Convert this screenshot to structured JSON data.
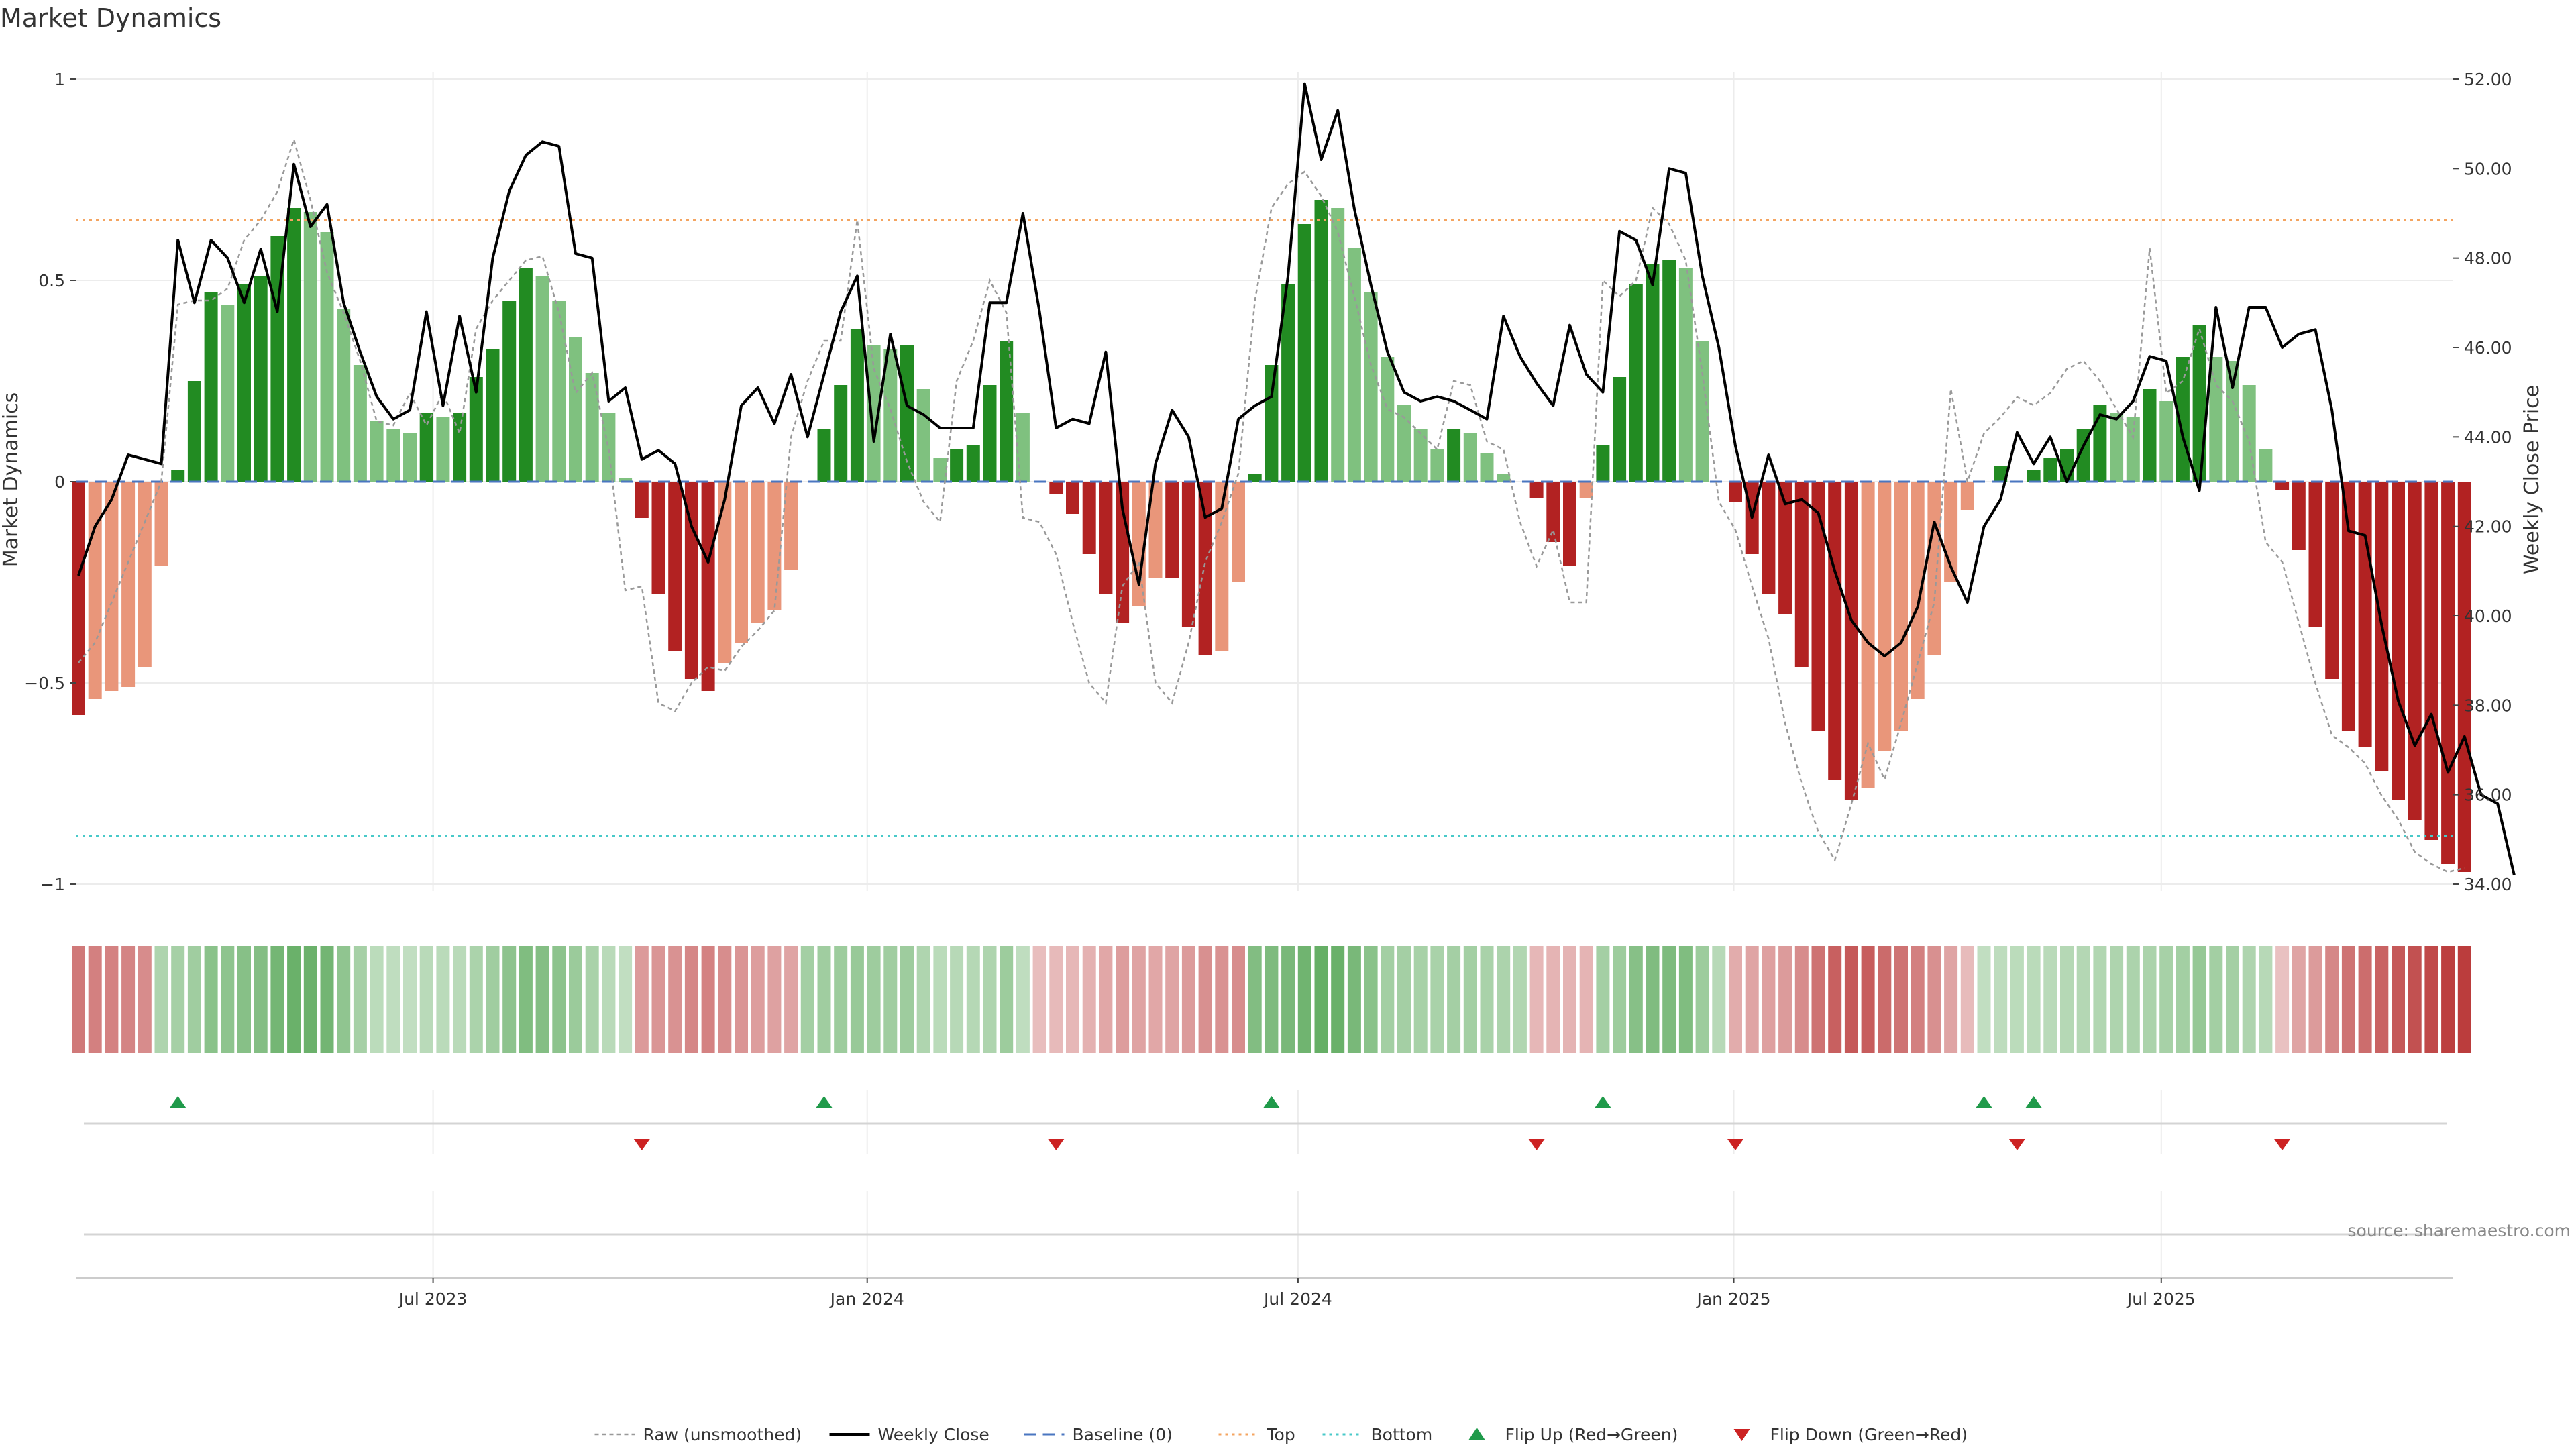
{
  "chart_data": {
    "type": "bar",
    "title": "Market Dynamics",
    "ylabel_left": "Market Dynamics",
    "ylabel_right": "Weekly Close Price",
    "source": "source: sharemaestro.com",
    "ylim_left": [
      -1.0,
      1.0
    ],
    "ylim_right": [
      34.0,
      52.0
    ],
    "left_ticks": [
      {
        "v": 1,
        "label": "1"
      },
      {
        "v": 0.5,
        "label": "0.5"
      },
      {
        "v": 0,
        "label": "0"
      },
      {
        "v": -0.5,
        "label": "−0.5"
      },
      {
        "v": -1,
        "label": "−1"
      }
    ],
    "right_ticks": [
      {
        "v": 52,
        "label": "52.00"
      },
      {
        "v": 50,
        "label": "50.00"
      },
      {
        "v": 48,
        "label": "48.00"
      },
      {
        "v": 46,
        "label": "46.00"
      },
      {
        "v": 44,
        "label": "44.00"
      },
      {
        "v": 42,
        "label": "42.00"
      },
      {
        "v": 40,
        "label": "40.00"
      },
      {
        "v": 38,
        "label": "38.00"
      },
      {
        "v": 36,
        "label": "36.00"
      },
      {
        "v": 34,
        "label": "34.00"
      }
    ],
    "x_ticks": [
      {
        "week": 21.4,
        "label": "Jul 2023"
      },
      {
        "week": 47.6,
        "label": "Jan 2024"
      },
      {
        "week": 73.6,
        "label": "Jul 2024"
      },
      {
        "week": 99.9,
        "label": "Jan 2025"
      },
      {
        "week": 125.7,
        "label": "Jul 2025"
      }
    ],
    "levels": {
      "baseline": 0,
      "top": 0.65,
      "bottom": -0.88
    },
    "colors": {
      "strong_green": "#228b22",
      "weak_green": "#7fc17f",
      "strong_red": "#b22222",
      "weak_red": "#e9967a",
      "close_line": "#000000",
      "raw_line": "#999999",
      "baseline": "#4a76c0",
      "top": "#f4a460",
      "bottom": "#48c9c9",
      "flip_up": "#1f9a4a",
      "flip_down": "#cc2222"
    },
    "series": [
      {
        "name": "Market Dynamics (smoothed)",
        "values": [
          -0.58,
          -0.54,
          -0.52,
          -0.51,
          -0.46,
          -0.21,
          0.03,
          0.25,
          0.47,
          0.44,
          0.49,
          0.51,
          0.61,
          0.68,
          0.67,
          0.62,
          0.43,
          0.29,
          0.15,
          0.13,
          0.12,
          0.17,
          0.16,
          0.17,
          0.26,
          0.33,
          0.45,
          0.53,
          0.51,
          0.45,
          0.36,
          0.27,
          0.17,
          0.01,
          -0.09,
          -0.28,
          -0.42,
          -0.49,
          -0.52,
          -0.45,
          -0.4,
          -0.35,
          -0.32,
          -0.22,
          0.0,
          0.13,
          0.24,
          0.38,
          0.34,
          0.33,
          0.34,
          0.23,
          0.06,
          0.08,
          0.09,
          0.24,
          0.35,
          0.17,
          0.0,
          -0.03,
          -0.08,
          -0.18,
          -0.28,
          -0.35,
          -0.31,
          -0.24,
          -0.24,
          -0.36,
          -0.43,
          -0.42,
          -0.25,
          0.02,
          0.29,
          0.49,
          0.64,
          0.7,
          0.68,
          0.58,
          0.47,
          0.31,
          0.19,
          0.13,
          0.08,
          0.13,
          0.12,
          0.07,
          0.02,
          0.0,
          -0.04,
          -0.15,
          -0.21,
          -0.04,
          0.09,
          0.26,
          0.49,
          0.54,
          0.55,
          0.53,
          0.35,
          0.0,
          -0.05,
          -0.18,
          -0.28,
          -0.33,
          -0.46,
          -0.62,
          -0.74,
          -0.79,
          -0.76,
          -0.67,
          -0.62,
          -0.54,
          -0.43,
          -0.25,
          -0.07,
          0.0,
          0.04,
          0.0,
          0.03,
          0.06,
          0.08,
          0.13,
          0.19,
          0.17,
          0.16,
          0.23,
          0.2,
          0.31,
          0.39,
          0.31,
          0.3,
          0.24,
          0.08,
          -0.02,
          -0.17,
          -0.36,
          -0.49,
          -0.62,
          -0.66,
          -0.72,
          -0.79,
          -0.84,
          -0.89,
          -0.95,
          -0.97
        ]
      },
      {
        "name": "Weekly Close",
        "values": [
          40.9,
          42.0,
          42.6,
          43.6,
          43.5,
          43.4,
          48.4,
          47.0,
          48.4,
          48.0,
          47.0,
          48.2,
          46.8,
          50.1,
          48.7,
          49.2,
          47.0,
          45.9,
          44.9,
          44.4,
          44.6,
          46.8,
          44.7,
          46.7,
          45.0,
          48.0,
          49.5,
          50.3,
          50.6,
          50.5,
          48.1,
          48.0,
          44.8,
          45.1,
          43.5,
          43.7,
          43.4,
          42.0,
          41.2,
          42.6,
          44.7,
          45.1,
          44.3,
          45.4,
          44.0,
          45.4,
          46.8,
          47.6,
          43.9,
          46.3,
          44.7,
          44.5,
          44.2,
          44.2,
          44.2,
          47.0,
          47.0,
          49.0,
          46.8,
          44.2,
          44.4,
          44.3,
          45.9,
          42.4,
          40.7,
          43.4,
          44.6,
          44.0,
          42.2,
          42.4,
          44.4,
          44.7,
          44.9,
          47.6,
          51.9,
          50.2,
          51.3,
          49.1,
          47.4,
          45.9,
          45.0,
          44.8,
          44.9,
          44.8,
          44.6,
          44.4,
          46.7,
          45.8,
          45.2,
          44.7,
          46.5,
          45.4,
          45.0,
          48.6,
          48.4,
          47.4,
          50.0,
          49.9,
          47.6,
          46.0,
          43.8,
          42.2,
          43.6,
          42.5,
          42.6,
          42.3,
          41.0,
          39.9,
          39.4,
          39.1,
          39.4,
          40.2,
          42.1,
          41.1,
          40.3,
          42.0,
          42.6,
          44.1,
          43.4,
          44.0,
          43.0,
          43.8,
          44.5,
          44.4,
          44.8,
          45.8,
          45.7,
          44.0,
          42.8,
          46.9,
          45.1,
          46.9,
          46.9,
          46.0,
          46.3,
          46.4,
          44.6,
          41.9,
          41.8,
          39.8,
          38.1,
          37.1,
          37.8,
          36.5,
          37.3,
          36.0,
          35.8,
          34.2
        ]
      },
      {
        "name": "Raw (unsmoothed)",
        "values": [
          -0.45,
          -0.4,
          -0.3,
          -0.2,
          -0.1,
          0.0,
          0.44,
          0.45,
          0.45,
          0.48,
          0.6,
          0.65,
          0.72,
          0.85,
          0.7,
          0.52,
          0.42,
          0.3,
          0.15,
          0.14,
          0.22,
          0.14,
          0.22,
          0.12,
          0.38,
          0.45,
          0.5,
          0.55,
          0.56,
          0.42,
          0.22,
          0.27,
          0.08,
          -0.27,
          -0.26,
          -0.55,
          -0.57,
          -0.5,
          -0.46,
          -0.47,
          -0.41,
          -0.37,
          -0.32,
          0.11,
          0.25,
          0.35,
          0.35,
          0.65,
          0.28,
          0.18,
          0.05,
          -0.05,
          -0.1,
          0.25,
          0.35,
          0.5,
          0.42,
          -0.09,
          -0.1,
          -0.18,
          -0.35,
          -0.5,
          -0.55,
          -0.26,
          -0.2,
          -0.5,
          -0.55,
          -0.4,
          -0.2,
          -0.1,
          0.02,
          0.45,
          0.68,
          0.74,
          0.77,
          0.71,
          0.62,
          0.46,
          0.29,
          0.18,
          0.16,
          0.12,
          0.08,
          0.25,
          0.24,
          0.1,
          0.08,
          -0.1,
          -0.21,
          -0.12,
          -0.3,
          -0.3,
          0.5,
          0.46,
          0.5,
          0.68,
          0.64,
          0.55,
          0.27,
          -0.05,
          -0.12,
          -0.26,
          -0.39,
          -0.6,
          -0.75,
          -0.87,
          -0.94,
          -0.8,
          -0.65,
          -0.74,
          -0.6,
          -0.45,
          -0.3,
          0.23,
          0.0,
          0.12,
          0.16,
          0.21,
          0.19,
          0.22,
          0.28,
          0.3,
          0.25,
          0.18,
          0.11,
          0.58,
          0.22,
          0.25,
          0.38,
          0.24,
          0.2,
          0.1,
          -0.15,
          -0.2,
          -0.35,
          -0.5,
          -0.63,
          -0.66,
          -0.7,
          -0.78,
          -0.84,
          -0.92,
          -0.95,
          -0.97,
          -0.96
        ]
      },
      {
        "name": "Regime Strip",
        "values": [
          -0.58,
          -0.54,
          -0.52,
          -0.51,
          -0.46,
          0.24,
          0.29,
          0.33,
          0.47,
          0.44,
          0.49,
          0.51,
          0.61,
          0.68,
          0.67,
          0.62,
          0.43,
          0.29,
          0.15,
          0.13,
          0.12,
          0.17,
          0.16,
          0.17,
          0.26,
          0.33,
          0.45,
          0.53,
          0.51,
          0.45,
          0.36,
          0.27,
          0.17,
          0.12,
          -0.37,
          -0.4,
          -0.42,
          -0.49,
          -0.52,
          -0.45,
          -0.4,
          -0.35,
          -0.32,
          -0.3,
          0.3,
          0.33,
          0.35,
          0.38,
          0.34,
          0.33,
          0.34,
          0.23,
          0.16,
          0.18,
          0.19,
          0.24,
          0.35,
          0.13,
          -0.14,
          -0.16,
          -0.18,
          -0.22,
          -0.28,
          -0.35,
          -0.31,
          -0.28,
          -0.3,
          -0.36,
          -0.43,
          -0.42,
          -0.45,
          0.52,
          0.55,
          0.58,
          0.64,
          0.7,
          0.68,
          0.58,
          0.47,
          0.31,
          0.3,
          0.28,
          0.27,
          0.3,
          0.31,
          0.27,
          0.25,
          0.22,
          -0.18,
          -0.2,
          -0.21,
          -0.2,
          0.3,
          0.35,
          0.49,
          0.54,
          0.55,
          0.53,
          0.35,
          0.18,
          -0.25,
          -0.3,
          -0.33,
          -0.36,
          -0.46,
          -0.62,
          -0.74,
          -0.79,
          -0.76,
          -0.67,
          -0.62,
          -0.54,
          -0.43,
          -0.3,
          -0.15,
          0.12,
          0.14,
          0.15,
          0.16,
          0.17,
          0.19,
          0.2,
          0.22,
          0.24,
          0.25,
          0.26,
          0.28,
          0.31,
          0.39,
          0.31,
          0.3,
          0.24,
          0.18,
          -0.12,
          -0.3,
          -0.36,
          -0.49,
          -0.62,
          -0.66,
          -0.72,
          -0.79,
          -0.84,
          -0.89,
          -0.95,
          -0.97
        ]
      }
    ],
    "flips": {
      "up_weeks": [
        6,
        45,
        72,
        92,
        115,
        118
      ],
      "down_weeks": [
        34,
        59,
        88,
        100,
        117,
        133
      ]
    },
    "legend": [
      {
        "key": "raw",
        "label": "Raw (unsmoothed)"
      },
      {
        "key": "close",
        "label": "Weekly Close"
      },
      {
        "key": "baseline",
        "label": "Baseline (0)"
      },
      {
        "key": "top",
        "label": "Top"
      },
      {
        "key": "bottom",
        "label": "Bottom"
      },
      {
        "key": "flipup",
        "label": "Flip Up (Red→Green)"
      },
      {
        "key": "flipdown",
        "label": "Flip Down (Green→Red)"
      }
    ]
  }
}
